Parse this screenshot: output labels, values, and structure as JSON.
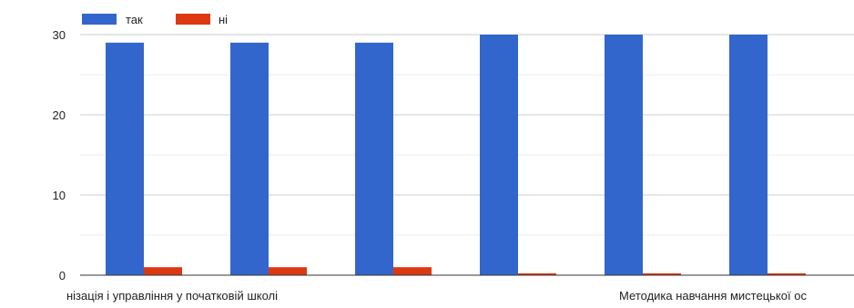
{
  "chart_data": {
    "type": "bar",
    "categories": [
      "нізація і управління у початковій школі",
      "",
      "",
      "",
      "Методика навчання мистецької ос",
      ""
    ],
    "series": [
      {
        "name": "так",
        "color": "#3366cc",
        "values": [
          29,
          29,
          29,
          30,
          30,
          30
        ]
      },
      {
        "name": "ні",
        "color": "#dc3912",
        "values": [
          1,
          1,
          1,
          0,
          0,
          0
        ]
      }
    ],
    "ylim": [
      0,
      30
    ],
    "yticks": [
      0,
      10,
      20,
      30
    ],
    "grid": true,
    "legend_position": "top-left",
    "title": "",
    "xlabel": "",
    "ylabel": ""
  }
}
